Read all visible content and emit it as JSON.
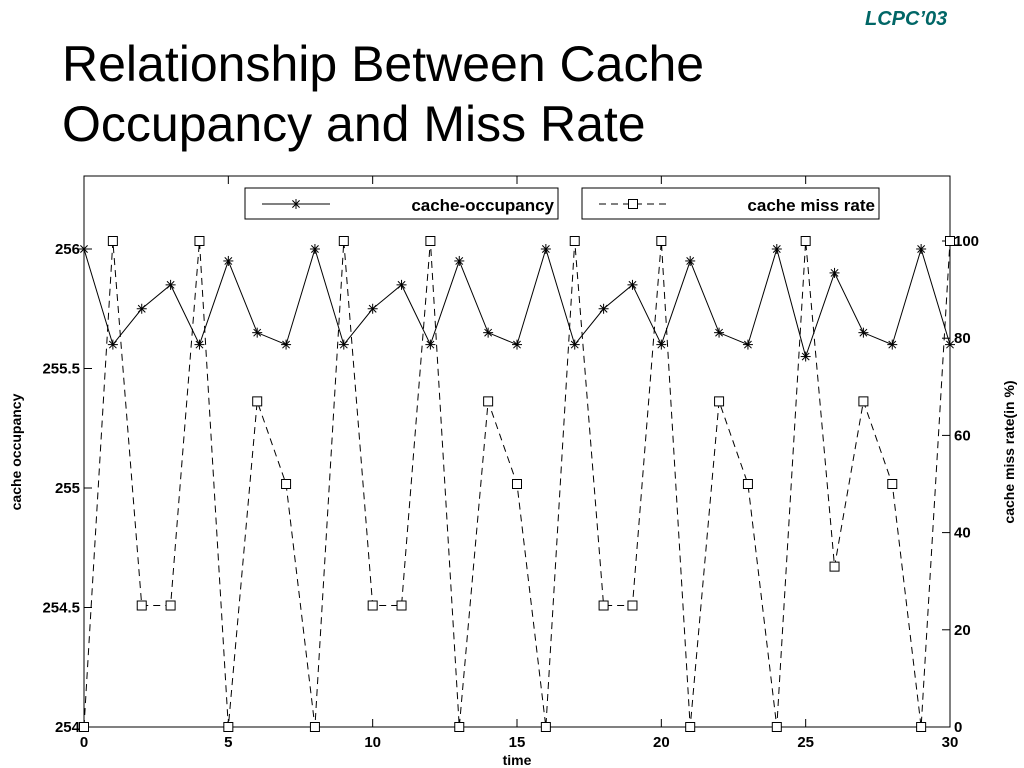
{
  "slide": {
    "conference_tag": "LCPC’03",
    "title": "Relationship Between Cache Occupancy and Miss Rate"
  },
  "colors": {
    "accent": "#006666",
    "line": "#000000",
    "background": "#ffffff"
  },
  "chart_data": {
    "type": "line",
    "xlabel": "time",
    "ylabel_left": "cache occupancy",
    "ylabel_right": "cache miss rate(in %)",
    "xlim": [
      0,
      30
    ],
    "ylim_left": [
      254,
      256.25
    ],
    "ylim_right": [
      0,
      112
    ],
    "xticks": [
      0,
      5,
      10,
      15,
      20,
      25,
      30
    ],
    "yticks_left": [
      254,
      254.5,
      255,
      255.5,
      256
    ],
    "yticks_right": [
      0,
      20,
      40,
      60,
      80,
      100
    ],
    "grid": false,
    "legend_placement": "top",
    "x": [
      0,
      1,
      2,
      3,
      4,
      5,
      6,
      7,
      8,
      9,
      10,
      11,
      12,
      13,
      14,
      15,
      16,
      17,
      18,
      19,
      20,
      21,
      22,
      23,
      24,
      25,
      26,
      27,
      28,
      29,
      30
    ],
    "series": [
      {
        "name": "cache-occupancy",
        "axis": "left",
        "line_style": "solid",
        "marker": "star",
        "values": [
          256,
          255.6,
          255.75,
          255.85,
          255.6,
          255.95,
          255.65,
          255.6,
          256,
          255.6,
          255.75,
          255.85,
          255.6,
          255.95,
          255.65,
          255.6,
          256,
          255.6,
          255.75,
          255.85,
          255.6,
          255.95,
          255.65,
          255.6,
          256,
          255.55,
          255.9,
          255.65,
          255.6,
          256,
          255.6
        ]
      },
      {
        "name": "cache miss rate",
        "axis": "right",
        "line_style": "dashed",
        "marker": "square",
        "values": [
          0,
          100,
          25,
          25,
          100,
          0,
          67,
          50,
          0,
          100,
          25,
          25,
          100,
          0,
          67,
          50,
          0,
          100,
          25,
          25,
          100,
          0,
          67,
          50,
          0,
          100,
          33,
          67,
          50,
          0,
          100
        ]
      }
    ]
  }
}
